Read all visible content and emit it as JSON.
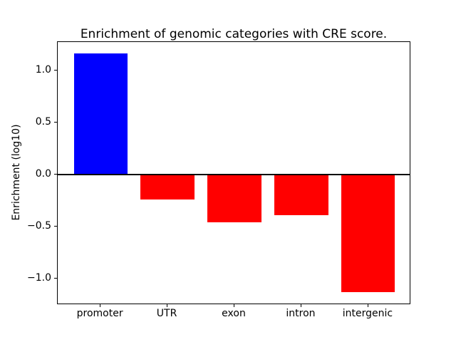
{
  "figure": {
    "background": "#ffffff"
  },
  "chart_data": {
    "type": "bar",
    "title": "Enrichment of genomic categories with CRE score.",
    "xlabel": "",
    "ylabel": "Enrichment (log10)",
    "categories": [
      "promoter",
      "UTR",
      "exon",
      "intron",
      "intergenic"
    ],
    "values": [
      1.16,
      -0.24,
      -0.46,
      -0.39,
      -1.13
    ],
    "bar_colors": [
      "#0000ff",
      "#ff0000",
      "#ff0000",
      "#ff0000",
      "#ff0000"
    ],
    "bar_width": 0.8,
    "xlim": [
      -0.64,
      4.64
    ],
    "ylim": [
      -1.25,
      1.27
    ],
    "yticks": [
      {
        "value": 1.0,
        "label": "1.0"
      },
      {
        "value": 0.5,
        "label": "0.5"
      },
      {
        "value": 0.0,
        "label": "0.0"
      },
      {
        "value": -0.5,
        "label": "−0.5"
      },
      {
        "value": -1.0,
        "label": "−1.0"
      }
    ],
    "zero_line": {
      "value": 0.0,
      "color": "#000000"
    },
    "grid": false,
    "legend": null,
    "spine_color": "#000000"
  }
}
